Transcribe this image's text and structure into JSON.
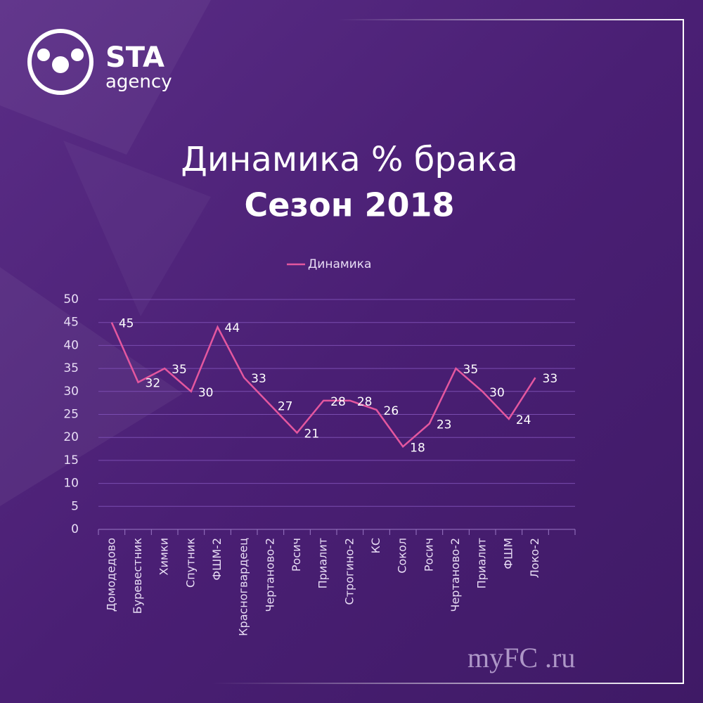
{
  "logo": {
    "name": "STA",
    "sub": "agency"
  },
  "watermark": "myFC .ru",
  "chart_data": {
    "type": "line",
    "title": "Динамика % брака",
    "subtitle": "Сезон 2018",
    "categories": [
      "Домодедово",
      "Буревестник",
      "Химки",
      "Спутник",
      "ФШМ-2",
      "Красногвардеец",
      "Чертаново-2",
      "Росич",
      "Приалит",
      "Строгино-2",
      "КС",
      "Сокол",
      "Росич",
      "Чертаново-2",
      "Приалит",
      "ФШМ",
      "Локо-2",
      null
    ],
    "series": [
      {
        "name": "Динамика",
        "color": "#e4579f",
        "values": [
          45,
          32,
          35,
          30,
          44,
          33,
          27,
          21,
          28,
          28,
          26,
          18,
          23,
          35,
          30,
          24,
          33,
          null
        ]
      }
    ],
    "ylim": [
      0,
      50
    ],
    "yticks": [
      0,
      5,
      10,
      15,
      20,
      25,
      30,
      35,
      40,
      45,
      50
    ],
    "grid": true,
    "legend": "top"
  }
}
